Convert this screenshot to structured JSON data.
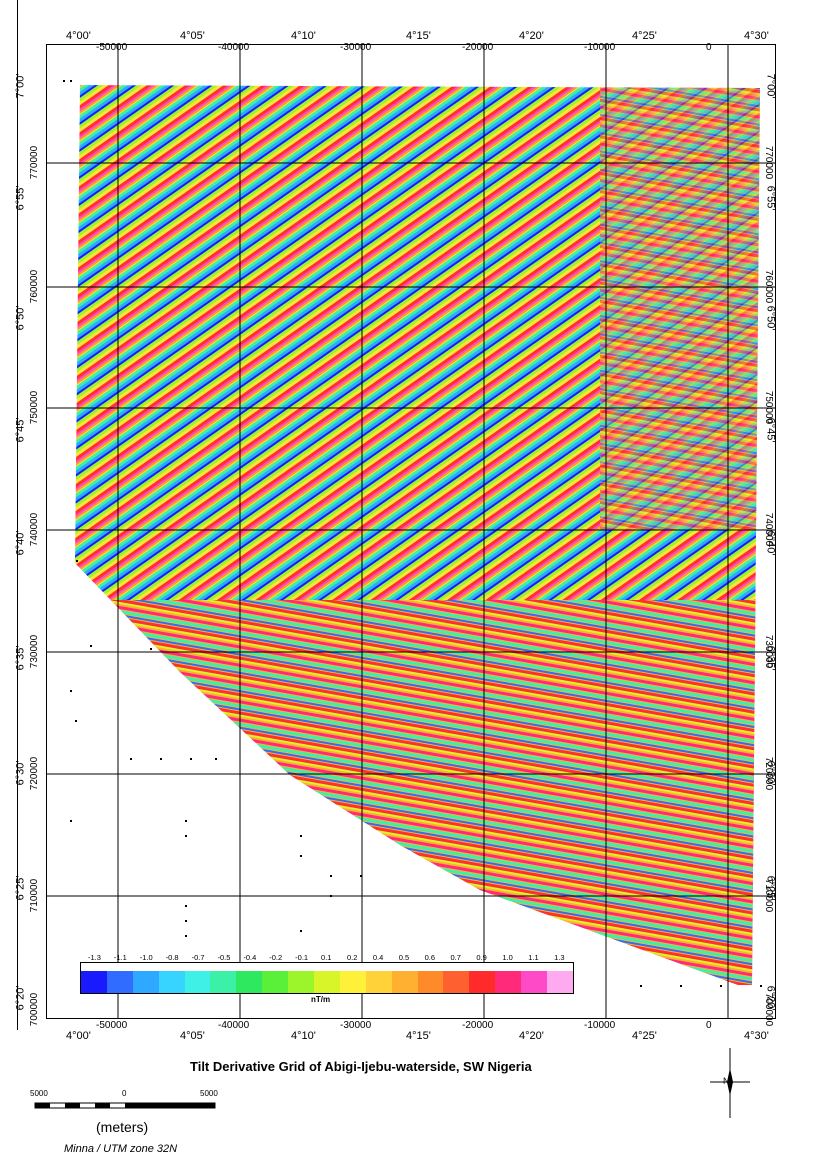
{
  "title": "Tilt Derivative Grid of Abigi-Ijebu-waterside, SW Nigeria",
  "projection": "Minna / UTM zone 32N",
  "scale_bar": {
    "labels": [
      "5000",
      "0",
      "5000"
    ],
    "unit": "(meters)"
  },
  "legend": {
    "unit": "nT/m",
    "values": [
      "-1.3",
      "-1.1",
      "-1.0",
      "-0.8",
      "-0.7",
      "-0.5",
      "-0.4",
      "-0.2",
      "-0.1",
      "0.1",
      "0.2",
      "0.4",
      "0.5",
      "0.6",
      "0.7",
      "0.9",
      "1.0",
      "1.1",
      "1.3"
    ],
    "colors": [
      "#1a1aff",
      "#2f6cff",
      "#2fa8ff",
      "#37d4ff",
      "#3ff0e6",
      "#3cf0a8",
      "#2ee860",
      "#5af03a",
      "#9cf52a",
      "#d8f52a",
      "#fff03a",
      "#ffd23a",
      "#ffb030",
      "#ff8a2a",
      "#ff6030",
      "#ff2a2a",
      "#ff2a7a",
      "#ff4ac8",
      "#ffaaf0"
    ]
  },
  "top_degree_labels": [
    "4°00'",
    "4°05'",
    "4°10'",
    "4°15'",
    "4°20'",
    "4°25'",
    "4°30'"
  ],
  "top_meter_labels": [
    "-50000",
    "-40000",
    "-30000",
    "-20000",
    "-10000",
    "0"
  ],
  "bottom_degree_labels": [
    "4°00'",
    "4°05'",
    "4°10'",
    "4°15'",
    "4°20'",
    "4°25'",
    "4°30'"
  ],
  "bottom_meter_labels": [
    "-50000",
    "-40000",
    "-30000",
    "-20000",
    "-10000",
    "0"
  ],
  "left_degree_labels": [
    "7°00'",
    "6°55'",
    "6°50'",
    "6°45'",
    "6°40'",
    "6°35'",
    "6°30'",
    "6°25'",
    "6°20'"
  ],
  "left_meter_labels": [
    "770000",
    "760000",
    "750000",
    "740000",
    "730000",
    "720000",
    "710000",
    "700000"
  ],
  "right_degree_labels": [
    "7°00'",
    "6°55'",
    "6°50'",
    "6°45'",
    "6°40'",
    "6°35'",
    "6°30'",
    "6°25'",
    "6°20'"
  ],
  "right_meter_labels": [
    "770000",
    "760000",
    "750000",
    "740000",
    "730000",
    "720000",
    "710000",
    "700000"
  ],
  "north_arrow": "N"
}
